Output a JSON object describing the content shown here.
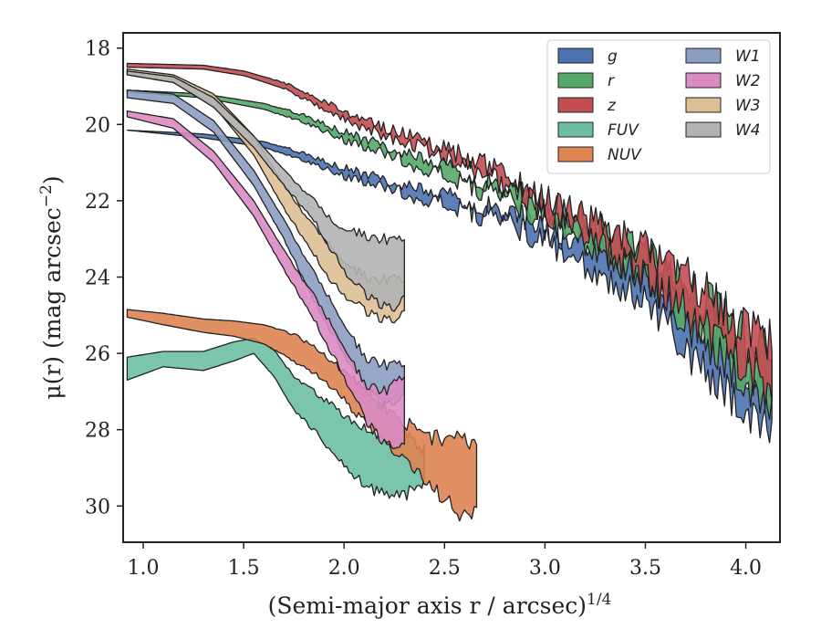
{
  "chart_data": {
    "type": "area",
    "xlabel": "(Semi-major axis r / arcsec)",
    "xlabel_sup": "1/4",
    "ylabel": "μ(r) (mag arcsec",
    "ylabel_sup": "−2",
    "ylabel_tail": ")",
    "xlim": [
      0.9,
      4.17
    ],
    "ylim": [
      30.95,
      17.6
    ],
    "y_inverted": true,
    "xticks": [
      1.0,
      1.5,
      2.0,
      2.5,
      3.0,
      3.5,
      4.0
    ],
    "xtick_labels": [
      "1.0",
      "1.5",
      "2.0",
      "2.5",
      "3.0",
      "3.5",
      "4.0"
    ],
    "yticks": [
      18,
      20,
      22,
      24,
      26,
      28,
      30
    ],
    "ytick_labels": [
      "18",
      "20",
      "22",
      "24",
      "26",
      "28",
      "30"
    ],
    "grid": false,
    "legend": {
      "placement": "top-right",
      "columns": 2
    },
    "series": [
      {
        "name": "g",
        "color": "#4c72b0",
        "x": [
          0.92,
          1.3,
          1.6,
          1.8,
          2.0,
          2.3,
          2.6,
          2.85,
          3.0,
          3.2,
          3.4,
          3.6,
          3.8,
          4.0,
          4.13
        ],
        "y1": [
          20.15,
          20.25,
          20.45,
          20.75,
          21.15,
          21.6,
          22.0,
          22.35,
          22.75,
          23.1,
          23.6,
          24.3,
          25.2,
          26.3,
          26.6
        ],
        "y2": [
          20.15,
          20.35,
          20.6,
          20.95,
          21.35,
          21.8,
          22.25,
          22.65,
          23.1,
          23.6,
          24.3,
          25.2,
          26.6,
          27.5,
          28.2
        ]
      },
      {
        "name": "r",
        "color": "#55a868",
        "x": [
          0.92,
          1.3,
          1.6,
          1.8,
          2.0,
          2.3,
          2.6,
          2.85,
          3.0,
          3.2,
          3.4,
          3.6,
          3.8,
          4.0,
          4.13
        ],
        "y1": [
          19.1,
          19.2,
          19.45,
          19.75,
          20.2,
          20.75,
          21.3,
          21.75,
          22.15,
          22.55,
          23.05,
          23.75,
          24.6,
          25.6,
          26.0
        ],
        "y2": [
          19.15,
          19.3,
          19.6,
          19.95,
          20.4,
          20.95,
          21.55,
          22.05,
          22.5,
          23.0,
          23.7,
          24.6,
          25.8,
          26.8,
          27.6
        ]
      },
      {
        "name": "z",
        "color": "#c44e52",
        "x": [
          0.92,
          1.3,
          1.5,
          1.7,
          1.9,
          2.1,
          2.4,
          2.7,
          2.9,
          3.1,
          3.3,
          3.5,
          3.7,
          3.9,
          4.05,
          4.13
        ],
        "y1": [
          18.4,
          18.45,
          18.6,
          18.9,
          19.4,
          19.9,
          20.45,
          21.05,
          21.6,
          22.2,
          22.75,
          23.3,
          24.0,
          24.8,
          25.6,
          25.8
        ],
        "y2": [
          18.5,
          18.55,
          18.72,
          19.05,
          19.6,
          20.1,
          20.65,
          21.3,
          21.9,
          22.6,
          23.3,
          24.0,
          24.9,
          25.8,
          26.5,
          27.0
        ]
      },
      {
        "name": "FUV",
        "color": "#6dbfa4",
        "x": [
          0.92,
          1.1,
          1.3,
          1.45,
          1.55,
          1.65,
          1.75,
          1.85,
          1.95,
          2.05,
          2.15,
          2.3,
          2.4
        ],
        "y1": [
          26.1,
          25.95,
          25.95,
          25.7,
          25.6,
          25.9,
          26.6,
          27.0,
          27.4,
          27.8,
          28.1,
          28.0,
          28.5
        ],
        "y2": [
          26.7,
          26.35,
          26.45,
          26.2,
          26.0,
          26.6,
          27.5,
          28.0,
          28.7,
          29.2,
          29.6,
          29.7,
          29.4
        ]
      },
      {
        "name": "NUV",
        "color": "#dd8452",
        "x": [
          0.92,
          1.1,
          1.3,
          1.45,
          1.6,
          1.75,
          1.9,
          2.05,
          2.2,
          2.35,
          2.5,
          2.6,
          2.66
        ],
        "y1": [
          24.85,
          24.95,
          25.1,
          25.15,
          25.25,
          25.5,
          26.0,
          26.7,
          27.4,
          28.0,
          28.3,
          28.3,
          28.2
        ],
        "y2": [
          25.05,
          25.25,
          25.45,
          25.55,
          25.75,
          26.2,
          26.7,
          27.5,
          28.3,
          29.1,
          29.8,
          30.3,
          29.9
        ]
      },
      {
        "name": "W1",
        "color": "#8c9dc2",
        "x": [
          0.92,
          1.15,
          1.35,
          1.55,
          1.7,
          1.85,
          2.0,
          2.1,
          2.2,
          2.3
        ],
        "y1": [
          19.1,
          19.2,
          19.9,
          21.2,
          22.5,
          23.9,
          25.2,
          26.1,
          26.3,
          26.2
        ],
        "y2": [
          19.3,
          19.45,
          20.2,
          21.6,
          23.0,
          24.6,
          26.0,
          26.9,
          27.3,
          27.2
        ]
      },
      {
        "name": "W2",
        "color": "#da8bc3",
        "x": [
          0.92,
          1.15,
          1.35,
          1.55,
          1.7,
          1.85,
          2.0,
          2.1,
          2.2,
          2.3
        ],
        "y1": [
          19.65,
          19.85,
          20.7,
          22.0,
          23.3,
          24.5,
          25.8,
          26.8,
          27.0,
          26.5
        ],
        "y2": [
          19.8,
          20.1,
          21.0,
          22.4,
          23.8,
          25.1,
          26.6,
          27.7,
          28.3,
          28.5
        ]
      },
      {
        "name": "W3",
        "color": "#ddbf95",
        "x": [
          0.92,
          1.15,
          1.35,
          1.55,
          1.7,
          1.85,
          1.95,
          2.05,
          2.15,
          2.25,
          2.3
        ],
        "y1": [
          18.55,
          18.7,
          19.2,
          20.3,
          21.6,
          22.7,
          23.3,
          23.8,
          24.1,
          24.0,
          24.0
        ],
        "y2": [
          18.7,
          18.9,
          19.5,
          20.8,
          22.2,
          23.4,
          24.2,
          24.7,
          25.0,
          25.1,
          25.0
        ]
      },
      {
        "name": "W4",
        "color": "#b3b3b3",
        "x": [
          0.92,
          1.15,
          1.35,
          1.55,
          1.7,
          1.85,
          1.95,
          2.05,
          2.15,
          2.25,
          2.3
        ],
        "y1": [
          18.6,
          18.75,
          19.3,
          20.3,
          21.2,
          22.0,
          22.6,
          22.8,
          23.0,
          23.0,
          22.9
        ],
        "y2": [
          18.7,
          18.9,
          19.55,
          20.6,
          21.6,
          22.5,
          23.4,
          24.2,
          24.6,
          24.8,
          24.6
        ]
      }
    ]
  }
}
